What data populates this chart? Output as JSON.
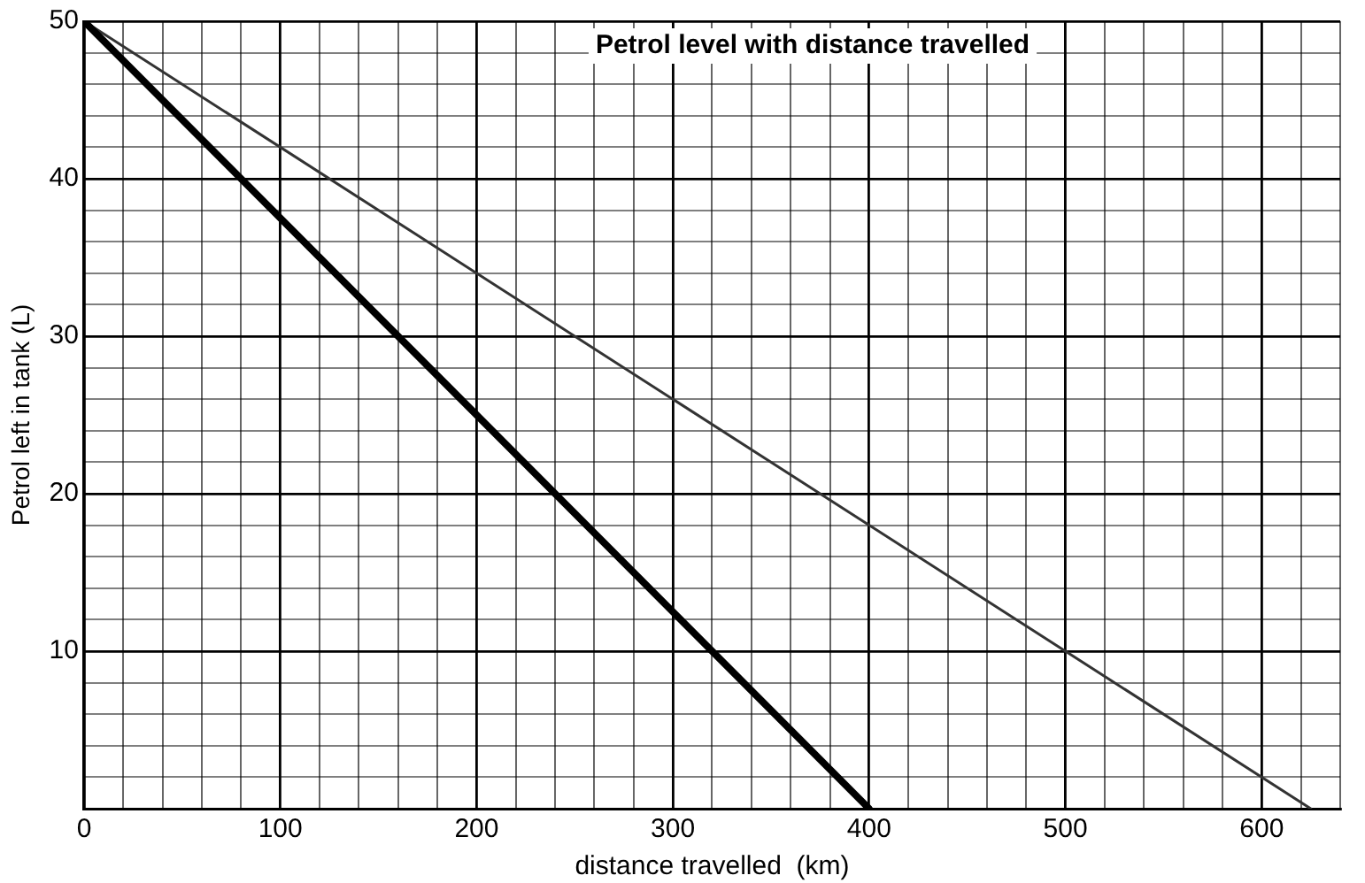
{
  "chart_data": {
    "type": "line",
    "title": "Petrol level with distance travelled",
    "xlabel": "distance travelled  (km)",
    "ylabel": "Petrol left in tank (L)",
    "series": [
      {
        "x": [
          0,
          400
        ],
        "values": [
          50,
          0
        ],
        "color": "#000000"
      },
      {
        "x": [
          0,
          625
        ],
        "values": [
          50,
          0
        ],
        "color": "#333333"
      }
    ],
    "xlim": [
      0,
      640
    ],
    "ylim": [
      0,
      50
    ],
    "xticks": [
      0,
      {
        "value": 20,
        "label": null
      },
      {
        "value": 40,
        "label": null
      },
      {
        "value": 60,
        "label": null
      },
      {
        "value": 80,
        "label": null
      },
      100,
      {
        "value": 120,
        "label": null
      },
      {
        "value": 140,
        "label": null
      },
      {
        "value": 160,
        "label": null
      },
      {
        "value": 180,
        "label": null
      },
      200,
      {
        "value": 220,
        "label": null
      },
      {
        "value": 240,
        "label": null
      },
      {
        "value": 260,
        "label": null
      },
      {
        "value": 280,
        "label": null
      },
      300,
      {
        "value": 320,
        "label": null
      },
      {
        "value": 340,
        "label": null
      },
      {
        "value": 360,
        "label": null
      },
      {
        "value": 380,
        "label": null
      },
      400,
      {
        "value": 420,
        "label": null
      },
      {
        "value": 440,
        "label": null
      },
      {
        "value": 460,
        "label": null
      },
      {
        "value": 480,
        "label": null
      },
      500,
      {
        "value": 520,
        "label": null
      },
      {
        "value": 540,
        "label": null
      },
      {
        "value": 560,
        "label": null
      },
      {
        "value": 580,
        "label": null
      },
      600,
      {
        "value": 620,
        "label": null
      },
      {
        "value": 640,
        "label": null
      }
    ],
    "yticks": [
      {
        "value": 0,
        "label": null
      },
      {
        "value": 2,
        "label": null
      },
      {
        "value": 4,
        "label": null
      },
      {
        "value": 6,
        "label": null
      },
      {
        "value": 8,
        "label": null
      },
      10,
      {
        "value": 12,
        "label": null
      },
      {
        "value": 14,
        "label": null
      },
      {
        "value": 16,
        "label": null
      },
      {
        "value": 18,
        "label": null
      },
      20,
      {
        "value": 22,
        "label": null
      },
      {
        "value": 24,
        "label": null
      },
      {
        "value": 26,
        "label": null
      },
      {
        "value": 28,
        "label": null
      },
      30,
      {
        "value": 32,
        "label": null
      },
      {
        "value": 34,
        "label": null
      },
      {
        "value": 36,
        "label": null
      },
      {
        "value": 38,
        "label": null
      },
      40,
      {
        "value": 42,
        "label": null
      },
      {
        "value": 44,
        "label": null
      },
      {
        "value": 46,
        "label": null
      },
      {
        "value": 48,
        "label": null
      },
      50
    ],
    "grid": true,
    "legend": false,
    "marker": "none",
    "line_style": "solid"
  }
}
